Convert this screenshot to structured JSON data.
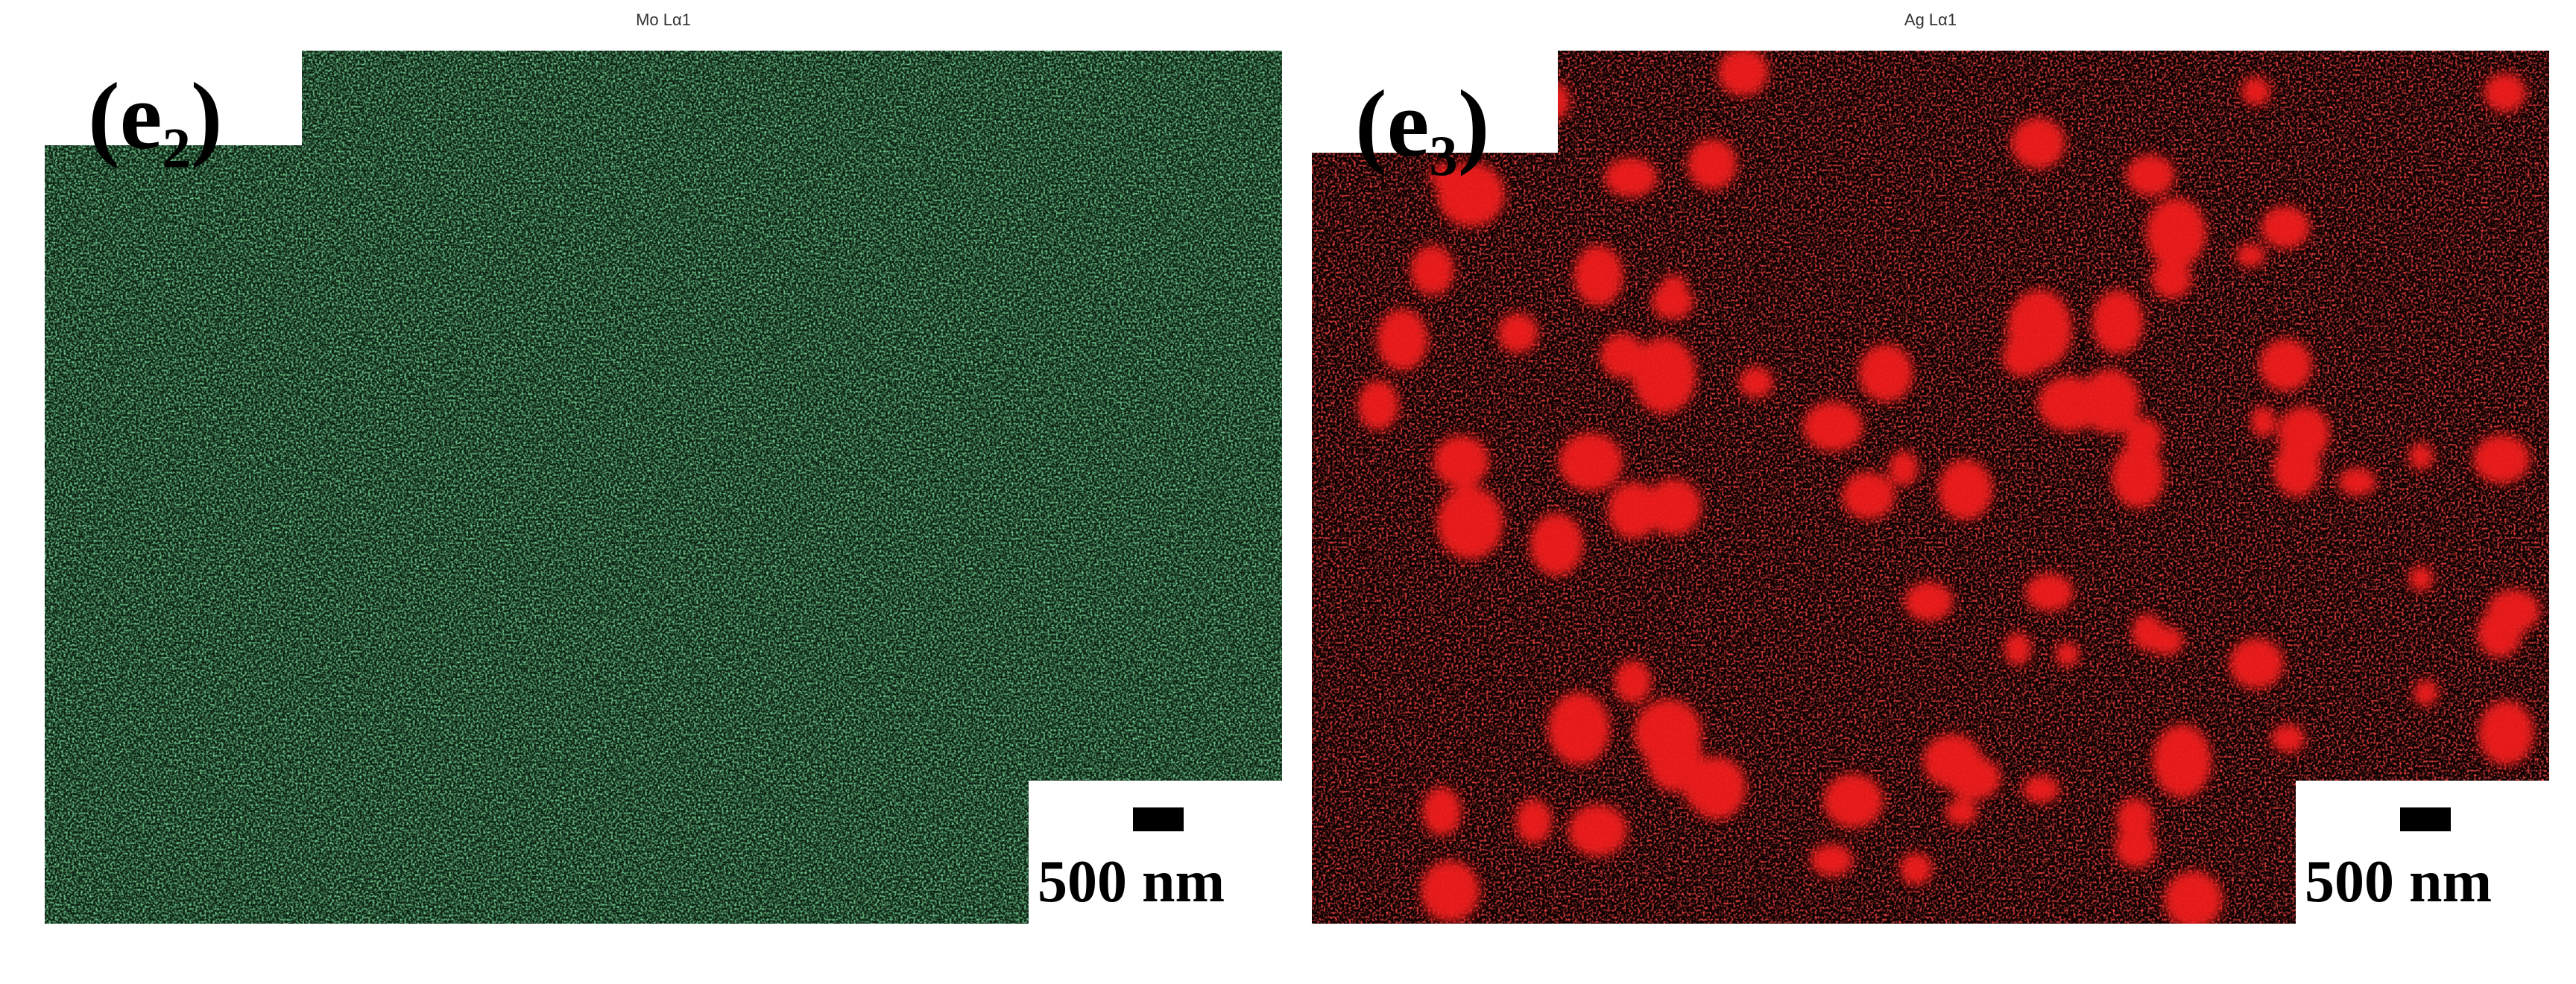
{
  "panels": [
    {
      "map_title": "Mo Lα1",
      "label": "(e₂)",
      "scale_bar": "500 nm",
      "color": "#2ea04a"
    },
    {
      "map_title": "Ag Lα1",
      "label": "(e₃)",
      "scale_bar": "500 nm",
      "color": "#e01515"
    }
  ]
}
